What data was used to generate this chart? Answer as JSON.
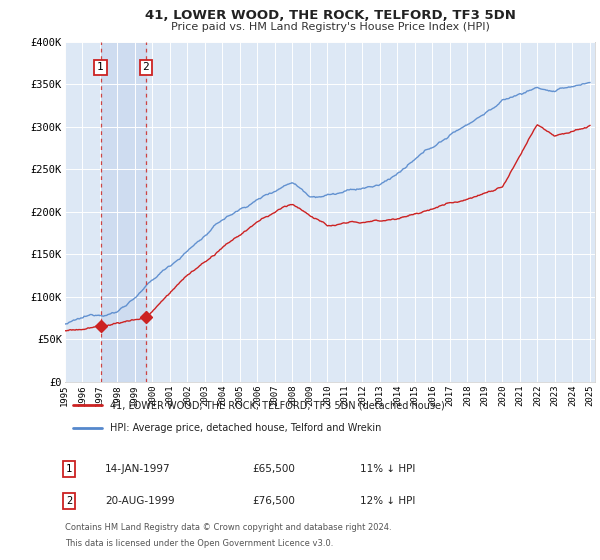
{
  "title": "41, LOWER WOOD, THE ROCK, TELFORD, TF3 5DN",
  "subtitle": "Price paid vs. HM Land Registry's House Price Index (HPI)",
  "legend_line1": "41, LOWER WOOD, THE ROCK, TELFORD, TF3 5DN (detached house)",
  "legend_line2": "HPI: Average price, detached house, Telford and Wrekin",
  "footnote1": "Contains HM Land Registry data © Crown copyright and database right 2024.",
  "footnote2": "This data is licensed under the Open Government Licence v3.0.",
  "sale1_date": "14-JAN-1997",
  "sale1_price": "£65,500",
  "sale1_hpi": "11% ↓ HPI",
  "sale1_year": 1997.04,
  "sale1_value": 65500,
  "sale2_date": "20-AUG-1999",
  "sale2_price": "£76,500",
  "sale2_hpi": "12% ↓ HPI",
  "sale2_year": 1999.63,
  "sale2_value": 76500,
  "ylim": [
    0,
    400000
  ],
  "xlim_start": 1995.0,
  "xlim_end": 2025.3,
  "yticks": [
    0,
    50000,
    100000,
    150000,
    200000,
    250000,
    300000,
    350000,
    400000
  ],
  "bg_color": "#dde8f5",
  "plot_bg": "#dde8f5",
  "red_color": "#cc2222",
  "blue_color": "#5588cc",
  "dashed_color": "#cc4444",
  "shade_color": "#c8d8ee",
  "grid_color": "#ffffff",
  "border_color": "#aaaaaa"
}
